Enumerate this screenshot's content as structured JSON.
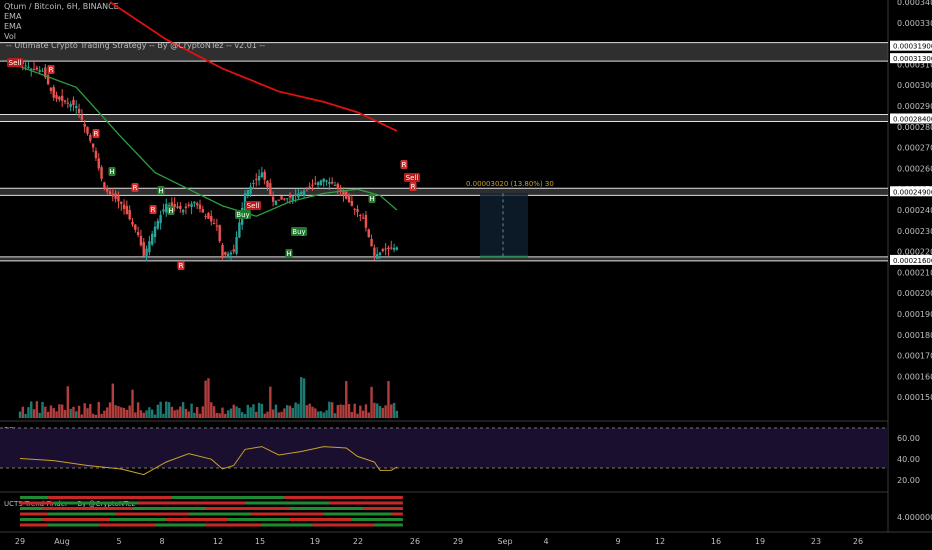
{
  "header": {
    "symbol": "Qtum / Bitcoin, 6H, BINANCE",
    "ema1": "EMA",
    "ema2": "EMA",
    "vol": "Vol",
    "strategy": "-- Ultimate Crypto Trading Strategy -- By @CryptoNTez -- v2.01 --"
  },
  "rsi_title": "RSI",
  "trend_title": "UCTS Trend Finder -- By @CryptoNTez",
  "colors": {
    "background": "#000000",
    "up": "#26a69a",
    "down": "#ef5350",
    "ema_fast": "#2e9e3e",
    "ema_slow": "#e01010",
    "rsi_line": "#c9a227",
    "rsi_band": "#1a0f2e",
    "measure": "#2e8b57",
    "measure_text": "#c9a227"
  },
  "measure_label": "0.00003020 (13.80%) 30",
  "chart_data": {
    "type": "candlestick",
    "price_axis": {
      "ticks": [
        "0.00034000",
        "0.00033000",
        "0.00032000",
        "0.00031000",
        "0.00030000",
        "0.00029000",
        "0.00028000",
        "0.00027000",
        "0.00026000",
        "0.00025000",
        "0.00024000",
        "0.00023000",
        "0.00022000",
        "0.00021000",
        "0.00020000",
        "0.00019000",
        "0.00018000",
        "0.00017000",
        "0.00016000",
        "0.00015000"
      ],
      "boxes": [
        "0.00031900",
        "0.00031300",
        "0.00028400",
        "0.00024900",
        "0.00021600"
      ]
    },
    "rsi_axis": [
      "60.00",
      "40.00",
      "20.00"
    ],
    "trend_axis": [
      "4.00000000"
    ],
    "x_axis": [
      "29",
      "Aug",
      "5",
      "8",
      "12",
      "15",
      "19",
      "22",
      "26",
      "29",
      "Sep",
      "4",
      "9",
      "12",
      "16",
      "19",
      "23",
      "26"
    ],
    "signals": [
      {
        "label": "Sell",
        "kind": "sell"
      },
      {
        "label": "R",
        "kind": "r"
      },
      {
        "label": "R",
        "kind": "r"
      },
      {
        "label": "H",
        "kind": "h"
      },
      {
        "label": "R",
        "kind": "r"
      },
      {
        "label": "H",
        "kind": "h"
      },
      {
        "label": "R",
        "kind": "r"
      },
      {
        "label": "R",
        "kind": "r"
      },
      {
        "label": "H",
        "kind": "h"
      },
      {
        "label": "Buy",
        "kind": "buy"
      },
      {
        "label": "Sell",
        "kind": "sell"
      },
      {
        "label": "Buy",
        "kind": "buy"
      },
      {
        "label": "H",
        "kind": "h"
      },
      {
        "label": "H",
        "kind": "h"
      },
      {
        "label": "R",
        "kind": "r"
      },
      {
        "label": "Sell",
        "kind": "sell"
      },
      {
        "label": "R",
        "kind": "r"
      }
    ]
  }
}
